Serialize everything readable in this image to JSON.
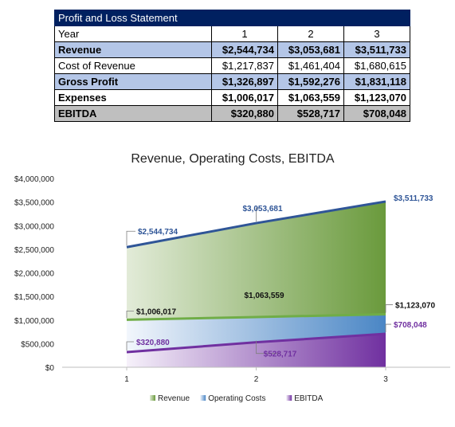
{
  "table": {
    "title": "Profit and Loss Statement",
    "header": {
      "label": "Year",
      "years": [
        "1",
        "2",
        "3"
      ]
    },
    "rows": [
      {
        "label": "Revenue",
        "values": [
          "$2,544,734",
          "$3,053,681",
          "$3,511,733"
        ]
      },
      {
        "label": "Cost of Revenue",
        "values": [
          "$1,217,837",
          "$1,461,404",
          "$1,680,615"
        ]
      },
      {
        "label": "Gross Profit",
        "values": [
          "$1,326,897",
          "$1,592,276",
          "$1,831,118"
        ]
      },
      {
        "label": "Expenses",
        "values": [
          "$1,006,017",
          "$1,063,559",
          "$1,123,070"
        ]
      },
      {
        "label": "EBITDA",
        "values": [
          "$320,880",
          "$528,717",
          "$708,048"
        ]
      }
    ]
  },
  "chart_data": {
    "type": "area",
    "title": "Revenue, Operating Costs, EBITDA",
    "categories": [
      "1",
      "2",
      "3"
    ],
    "ylim": [
      0,
      4000000
    ],
    "yticks": [
      "$0",
      "$500,000",
      "$1,000,000",
      "$1,500,000",
      "$2,000,000",
      "$2,500,000",
      "$3,000,000",
      "$3,500,000",
      "$4,000,000"
    ],
    "legend_position": "bottom",
    "series": [
      {
        "name": "Revenue",
        "values": [
          2544734,
          3053681,
          3511733
        ],
        "labels": [
          "$2,544,734",
          "$3,053,681",
          "$3,511,733"
        ],
        "color": "#2f5597",
        "fill_light": "#e2ebd8",
        "fill_dark": "#6a9a3c"
      },
      {
        "name": "Operating Costs",
        "values": [
          1006017,
          1063559,
          1123070
        ],
        "labels": [
          "$1,006,017",
          "$1,063,559",
          "$1,123,070"
        ],
        "color": "#70ad47",
        "fill_light": "#f2f6fc",
        "fill_dark": "#4a86c5"
      },
      {
        "name": "EBITDA",
        "values": [
          320880,
          528717,
          708048
        ],
        "labels": [
          "$320,880",
          "$528,717",
          "$708,048"
        ],
        "color": "#7030a0",
        "fill_light": "#f6f1fa",
        "fill_dark": "#7030a0"
      }
    ]
  }
}
